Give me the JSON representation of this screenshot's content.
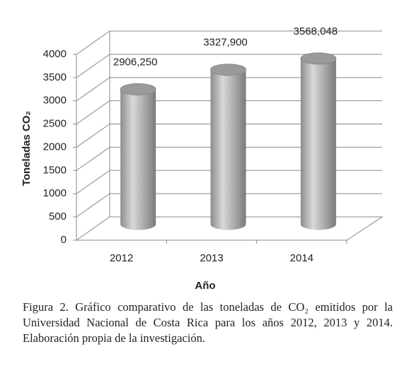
{
  "chart_data": {
    "type": "cylinder",
    "y_label": "Toneladas CO₂",
    "x_label": "Año",
    "categories": [
      "2012",
      "2013",
      "2014"
    ],
    "values": [
      2906.25,
      3327.9,
      3568.048
    ],
    "value_labels": [
      "2906,250",
      "3327,900",
      "3568,048"
    ],
    "color": "#a6a6a6",
    "ylim": [
      0,
      4000
    ],
    "yticks": [
      0,
      500,
      1000,
      1500,
      2000,
      2500,
      3000,
      3500,
      4000
    ],
    "grid": true
  },
  "caption": "Figura 2. Gráfico comparativo de las toneladas de CO₂ emitidos por la Universidad Nacional de Costa Rica para los años 2012, 2013 y 2014. Elaboración propia de la investigación."
}
